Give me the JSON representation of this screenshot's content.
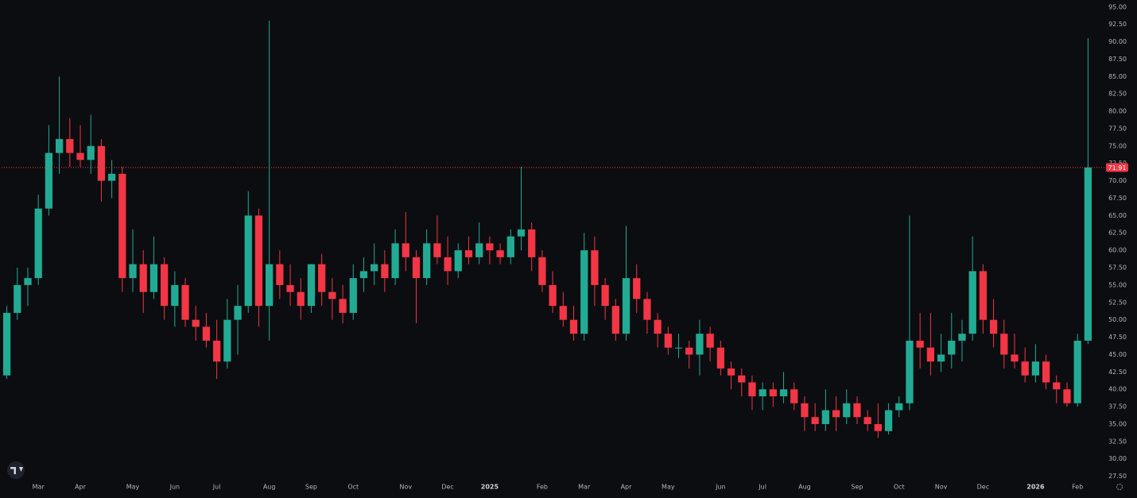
{
  "chart_data": {
    "type": "candlestick",
    "up_color": "#22ab94",
    "down_color": "#f23645",
    "ylim": [
      27,
      96
    ],
    "yticks": [
      {
        "value": 27.5,
        "label": "27.50"
      },
      {
        "value": 30,
        "label": "30.00"
      },
      {
        "value": 32.5,
        "label": "32.50"
      },
      {
        "value": 35,
        "label": "35.00"
      },
      {
        "value": 37.5,
        "label": "37.50"
      },
      {
        "value": 40,
        "label": "40.00"
      },
      {
        "value": 42.5,
        "label": "42.50"
      },
      {
        "value": 45,
        "label": "45.00"
      },
      {
        "value": 47.5,
        "label": "47.50"
      },
      {
        "value": 50,
        "label": "50.00"
      },
      {
        "value": 52.5,
        "label": "52.50"
      },
      {
        "value": 55,
        "label": "55.00"
      },
      {
        "value": 57.5,
        "label": "57.50"
      },
      {
        "value": 60,
        "label": "60.00"
      },
      {
        "value": 62.5,
        "label": "62.50"
      },
      {
        "value": 65,
        "label": "65.00"
      },
      {
        "value": 67.5,
        "label": "67.50"
      },
      {
        "value": 70,
        "label": "70.00"
      },
      {
        "value": 72.5,
        "label": "72.50"
      },
      {
        "value": 75,
        "label": "75.00"
      },
      {
        "value": 77.5,
        "label": "77.50"
      },
      {
        "value": 80,
        "label": "80.00"
      },
      {
        "value": 82.5,
        "label": "82.50"
      },
      {
        "value": 85,
        "label": "85.00"
      },
      {
        "value": 87.5,
        "label": "87.50"
      },
      {
        "value": 90,
        "label": "90.00"
      },
      {
        "value": 92.5,
        "label": "92.50"
      },
      {
        "value": 95,
        "label": "95.00"
      }
    ],
    "grid": false,
    "last_price": {
      "value": 71.91,
      "label": "71.91"
    },
    "categories": [
      null,
      null,
      null,
      "Mar",
      null,
      null,
      null,
      "Apr",
      null,
      null,
      null,
      null,
      "May",
      null,
      null,
      null,
      "Jun",
      null,
      null,
      null,
      "Jul",
      null,
      null,
      null,
      null,
      "Aug",
      null,
      null,
      null,
      "Sep",
      null,
      null,
      null,
      "Oct",
      null,
      null,
      null,
      null,
      "Nov",
      null,
      null,
      null,
      "Dec",
      null,
      null,
      null,
      "2025",
      null,
      null,
      null,
      null,
      "Feb",
      null,
      null,
      null,
      "Mar",
      null,
      null,
      null,
      "Apr",
      null,
      null,
      null,
      "May",
      null,
      null,
      null,
      null,
      "Jun",
      null,
      null,
      null,
      "Jul",
      null,
      null,
      null,
      "Aug",
      null,
      null,
      null,
      null,
      "Sep",
      null,
      null,
      null,
      "Oct",
      null,
      null,
      null,
      "Nov",
      null,
      null,
      null,
      "Dec",
      null,
      null,
      null,
      null,
      "2026",
      null,
      null,
      null,
      "Feb",
      null
    ],
    "ohlc": [
      [
        42,
        52,
        41.5,
        51
      ],
      [
        51,
        57.5,
        50,
        55
      ],
      [
        55,
        57.5,
        52,
        56
      ],
      [
        56,
        68,
        55,
        66
      ],
      [
        66,
        78,
        65,
        74
      ],
      [
        74,
        85,
        71,
        76
      ],
      [
        76,
        79,
        72,
        74
      ],
      [
        74,
        78,
        72,
        73
      ],
      [
        73,
        79.5,
        71,
        75
      ],
      [
        75,
        76,
        67,
        70
      ],
      [
        70,
        73,
        67.5,
        71
      ],
      [
        71,
        72,
        54,
        56
      ],
      [
        56,
        63,
        54,
        58
      ],
      [
        58,
        60,
        51,
        54
      ],
      [
        54,
        62,
        53,
        58
      ],
      [
        58,
        59,
        50,
        52
      ],
      [
        52,
        57,
        49,
        55
      ],
      [
        55,
        56,
        49,
        50
      ],
      [
        50,
        52,
        47,
        49
      ],
      [
        49,
        51,
        46,
        47
      ],
      [
        47,
        50,
        41.5,
        44
      ],
      [
        44,
        53,
        43,
        50
      ],
      [
        50,
        55,
        45,
        52
      ],
      [
        52,
        68.5,
        51,
        65
      ],
      [
        65,
        66,
        49,
        52
      ],
      [
        52,
        93,
        47,
        58
      ],
      [
        58,
        60,
        53,
        55
      ],
      [
        55,
        58,
        52,
        54
      ],
      [
        54,
        56,
        50,
        52
      ],
      [
        52,
        58,
        51,
        58
      ],
      [
        58,
        59.5,
        52,
        54
      ],
      [
        54,
        56,
        50,
        53
      ],
      [
        53,
        55,
        49.5,
        51
      ],
      [
        51,
        58,
        50,
        56
      ],
      [
        56,
        59,
        54,
        57
      ],
      [
        57,
        61,
        55,
        58
      ],
      [
        58,
        60,
        54,
        56
      ],
      [
        56,
        63,
        55,
        61
      ],
      [
        61,
        65.5,
        57,
        59
      ],
      [
        59,
        60,
        49.5,
        56
      ],
      [
        56,
        63,
        55,
        61
      ],
      [
        61,
        65,
        58,
        59
      ],
      [
        59,
        62,
        55,
        57
      ],
      [
        57,
        61,
        56,
        60
      ],
      [
        60,
        62,
        58,
        59
      ],
      [
        59,
        64,
        58,
        61
      ],
      [
        61,
        62,
        58,
        60
      ],
      [
        60,
        61,
        58,
        59
      ],
      [
        59,
        63,
        58,
        62
      ],
      [
        62,
        72,
        60,
        63
      ],
      [
        63,
        64,
        57,
        59
      ],
      [
        59,
        60,
        54,
        55
      ],
      [
        55,
        57,
        51,
        52
      ],
      [
        52,
        54,
        49,
        50
      ],
      [
        50,
        52,
        47,
        48
      ],
      [
        48,
        62.5,
        47,
        60
      ],
      [
        60,
        62,
        52,
        55
      ],
      [
        55,
        56,
        50,
        52
      ],
      [
        52,
        53,
        47,
        48
      ],
      [
        48,
        63.5,
        47,
        56
      ],
      [
        56,
        58,
        51,
        53
      ],
      [
        53,
        54,
        48,
        50
      ],
      [
        50,
        51,
        46,
        48
      ],
      [
        48,
        49,
        45,
        46
      ],
      [
        46,
        48,
        44.5,
        46
      ],
      [
        46,
        47,
        43,
        45
      ],
      [
        45,
        50,
        42,
        48
      ],
      [
        48,
        49,
        44,
        46
      ],
      [
        46,
        47,
        42,
        43
      ],
      [
        43,
        44,
        40,
        42
      ],
      [
        42,
        43,
        39,
        41
      ],
      [
        41,
        42,
        37,
        39
      ],
      [
        39,
        41,
        37,
        40
      ],
      [
        40,
        41,
        37.5,
        39
      ],
      [
        39,
        42.5,
        38,
        40
      ],
      [
        40,
        41,
        37,
        38
      ],
      [
        38,
        39,
        34,
        36
      ],
      [
        36,
        38,
        34,
        35
      ],
      [
        35,
        40,
        34,
        37
      ],
      [
        37,
        39,
        34,
        36
      ],
      [
        36,
        40,
        35,
        38
      ],
      [
        38,
        39,
        35,
        36
      ],
      [
        36,
        37,
        34,
        35
      ],
      [
        35,
        38,
        33,
        34
      ],
      [
        34,
        38,
        33.5,
        37
      ],
      [
        37,
        39,
        36,
        38
      ],
      [
        38,
        65,
        37,
        47
      ],
      [
        47,
        51,
        43,
        46
      ],
      [
        46,
        51,
        42,
        44
      ],
      [
        44,
        48,
        42.5,
        45
      ],
      [
        45,
        51,
        43,
        47
      ],
      [
        47,
        50,
        44,
        48
      ],
      [
        48,
        62,
        47,
        57
      ],
      [
        57,
        58,
        48,
        50
      ],
      [
        50,
        53,
        46,
        48
      ],
      [
        48,
        50,
        43,
        45
      ],
      [
        45,
        48,
        43,
        44
      ],
      [
        44,
        46,
        41,
        42
      ],
      [
        42,
        46.5,
        41,
        44
      ],
      [
        44,
        45,
        40,
        41
      ],
      [
        41,
        42,
        38,
        40
      ],
      [
        40,
        41,
        37.5,
        38
      ],
      [
        38,
        48,
        37.5,
        47
      ],
      [
        47,
        90.5,
        46.5,
        71.91
      ]
    ]
  }
}
